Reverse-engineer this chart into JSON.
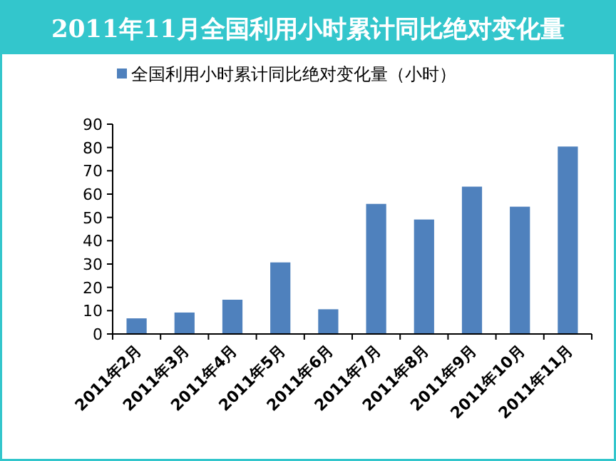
{
  "chart_data": {
    "type": "bar",
    "title": "2011年11月全国利用小时累计同比绝对变化量",
    "categories": [
      "2011年2月",
      "2011年3月",
      "2011年4月",
      "2011年5月",
      "2011年6月",
      "2011年7月",
      "2011年8月",
      "2011年9月",
      "2011年10月",
      "2011年11月"
    ],
    "series": [
      {
        "name": "全国利用小时累计同比绝对变化量（小时）",
        "color": "#4f81bd",
        "values": [
          6.7,
          9.2,
          14.7,
          30.7,
          10.6,
          55.8,
          49.1,
          63.2,
          54.6,
          80.4
        ]
      }
    ],
    "ylim": [
      0,
      90
    ],
    "yticks": [
      0,
      10,
      20,
      30,
      40,
      50,
      60,
      70,
      80,
      90
    ],
    "legend": "top"
  }
}
